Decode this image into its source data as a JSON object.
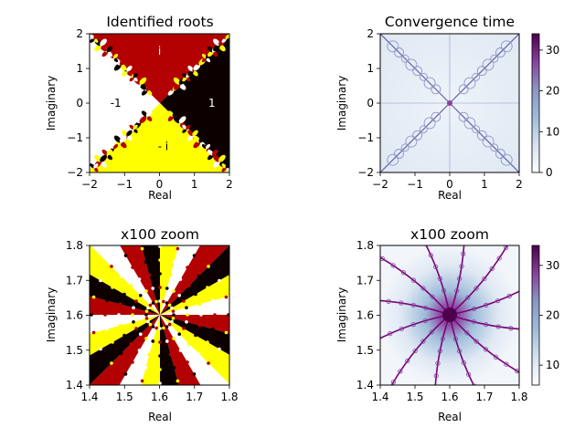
{
  "figure": {
    "panels": [
      {
        "id": "roots",
        "title": "Identified roots",
        "xlabel": "Real",
        "ylabel": "Imaginary",
        "xticks": [
          "−2",
          "−1",
          "0",
          "1",
          "2"
        ],
        "yticks": [
          "2",
          "1",
          "0",
          "−1",
          "−2"
        ],
        "root_labels": [
          {
            "text": "i",
            "x": 0,
            "y": 1.5,
            "color": "#ffffff"
          },
          {
            "text": "-1",
            "x": -1.25,
            "y": 0,
            "color": "#000000"
          },
          {
            "text": "1",
            "x": 1.5,
            "y": 0,
            "color": "#ffffff"
          },
          {
            "text": "- i",
            "x": 0.1,
            "y": -1.25,
            "color": "#000000"
          }
        ]
      },
      {
        "id": "time",
        "title": "Convergence time",
        "xlabel": "Real",
        "ylabel": "Imaginary",
        "xticks": [
          "−2",
          "−1",
          "0",
          "1",
          "2"
        ],
        "yticks": [
          "2",
          "1",
          "0",
          "−1",
          "−2"
        ],
        "colorbar_ticks": [
          "30",
          "20",
          "10",
          "0"
        ]
      },
      {
        "id": "roots_zoom",
        "title": "x100 zoom",
        "xlabel": "Real",
        "ylabel": "Imaginary",
        "xticks": [
          "1.4",
          "1.5",
          "1.6",
          "1.7",
          "1.8"
        ],
        "yticks": [
          "1.8",
          "1.7",
          "1.6",
          "1.5",
          "1.4"
        ]
      },
      {
        "id": "time_zoom",
        "title": "x100 zoom",
        "xlabel": "Real",
        "ylabel": "Imaginary",
        "xticks": [
          "1.4",
          "1.5",
          "1.6",
          "1.7",
          "1.8"
        ],
        "yticks": [
          "1.8",
          "1.7",
          "1.6",
          "1.5",
          "1.4"
        ],
        "colorbar_ticks": [
          "30",
          "20",
          "10"
        ]
      }
    ]
  },
  "chart_data": [
    {
      "type": "heatmap",
      "title": "Identified roots",
      "xlabel": "Real",
      "ylabel": "Imaginary",
      "xlim": [
        -2,
        2
      ],
      "ylim": [
        -2,
        2
      ],
      "categories": [
        "i",
        "-1",
        "1",
        "- i"
      ],
      "category_colors": {
        "i": "#b30000",
        "-1": "#ffffff",
        "1": "#0d0000",
        "- i": "#ffff00"
      }
    },
    {
      "type": "heatmap",
      "title": "Convergence time",
      "xlabel": "Real",
      "ylabel": "Imaginary",
      "xlim": [
        -2,
        2
      ],
      "ylim": [
        -2,
        2
      ],
      "colorbar_range": [
        0,
        34
      ],
      "colormap": [
        "#ffffff",
        "#c7d6ea",
        "#8c96c6",
        "#88419d",
        "#4d004b"
      ]
    },
    {
      "type": "heatmap",
      "title": "x100 zoom",
      "xlabel": "Real",
      "ylabel": "Imaginary",
      "xlim": [
        1.4,
        1.8
      ],
      "ylim": [
        1.4,
        1.8
      ],
      "category_colors": {
        "i": "#b30000",
        "-1": "#ffffff",
        "1": "#0d0000",
        "- i": "#ffff00"
      }
    },
    {
      "type": "heatmap",
      "title": "x100 zoom",
      "xlabel": "Real",
      "ylabel": "Imaginary",
      "xlim": [
        1.4,
        1.8
      ],
      "ylim": [
        1.4,
        1.8
      ],
      "colorbar_range": [
        6,
        34
      ],
      "colormap": [
        "#ffffff",
        "#c7d6ea",
        "#8c96c6",
        "#88419d",
        "#4d004b"
      ]
    }
  ]
}
